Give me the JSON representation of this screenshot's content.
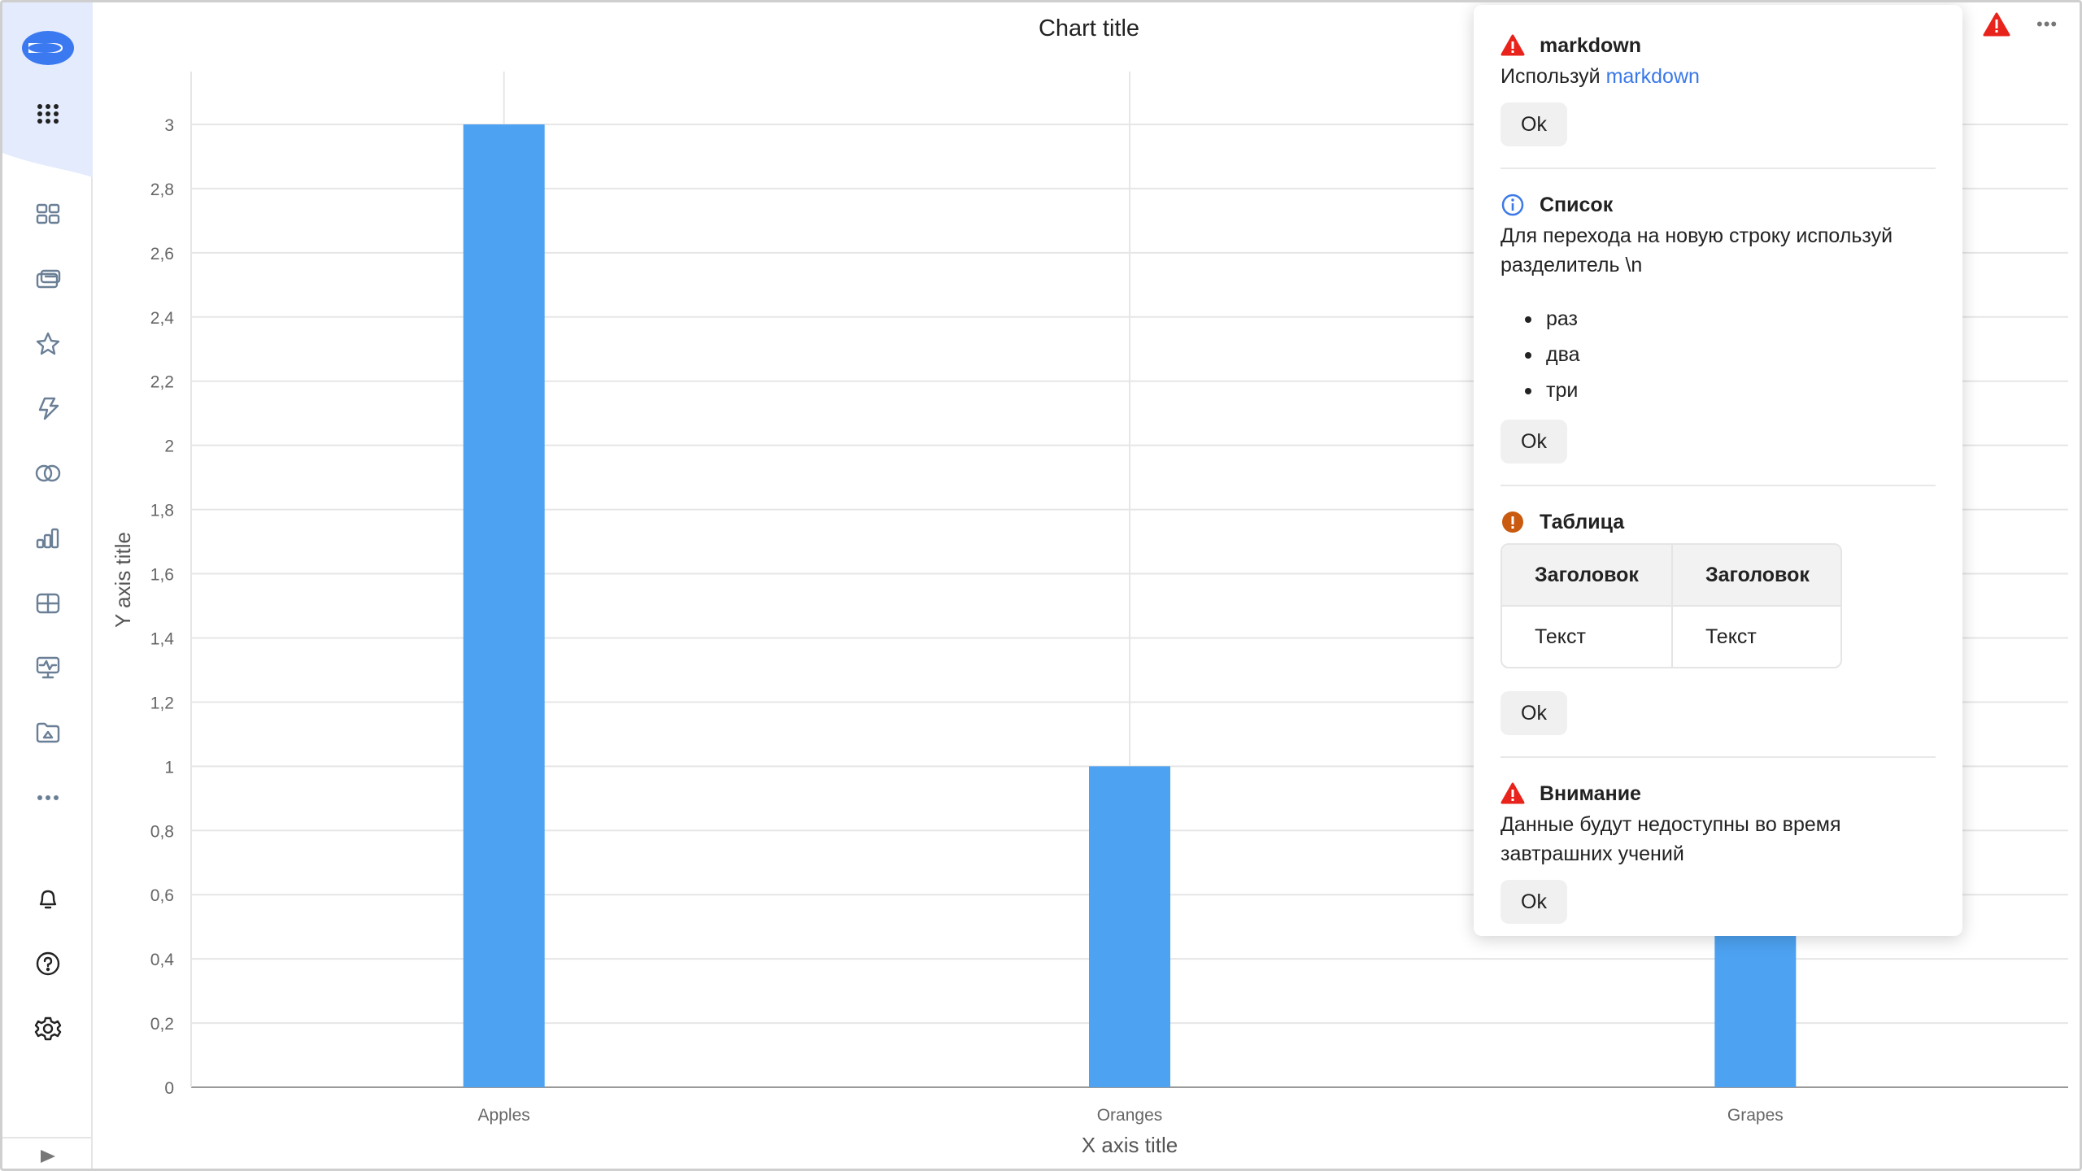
{
  "sidebar": {
    "items": [
      "logo",
      "apps-grid",
      "dashboards",
      "collections",
      "favorites",
      "actions",
      "links",
      "charts",
      "datasets",
      "monitoring",
      "folders",
      "more"
    ],
    "bottom": [
      "notifications",
      "help",
      "settings"
    ]
  },
  "header": {
    "more_label": "•••"
  },
  "chart_data": {
    "type": "bar",
    "title": "Chart title",
    "xlabel": "X axis title",
    "ylabel": "Y axis title",
    "categories": [
      "Apples",
      "Oranges",
      "Grapes"
    ],
    "values": [
      3,
      1,
      2
    ],
    "ylim": [
      0,
      3
    ],
    "yticks": [
      "0",
      "0,2",
      "0,4",
      "0,6",
      "0,8",
      "1",
      "1,2",
      "1,4",
      "1,6",
      "1,8",
      "2",
      "2,2",
      "2,4",
      "2,6",
      "2,8",
      "3"
    ],
    "grid": true,
    "color": "#4da2f1"
  },
  "popup": {
    "sections": [
      {
        "type": "danger",
        "title": "markdown",
        "text": "Используй ",
        "link": "markdown",
        "ok": "Ok"
      },
      {
        "type": "info",
        "title": "Список",
        "text": "Для перехода на новую строку используй разделитель \\n",
        "items": [
          "раз",
          "два",
          "три"
        ],
        "ok": "Ok"
      },
      {
        "type": "warning",
        "title": "Таблица",
        "table": {
          "headers": [
            "Заголовок",
            "Заголовок"
          ],
          "rows": [
            [
              "Текст",
              "Текст"
            ]
          ]
        },
        "ok": "Ok"
      },
      {
        "type": "danger",
        "title": "Внимание",
        "text": "Данные будут недоступны во время завтрашних учений",
        "ok": "Ok"
      }
    ]
  },
  "colors": {
    "danger": "#e8231b",
    "info": "#3b79e8",
    "warning": "#c95a0f",
    "bar": "#4da2f1",
    "sidebar_accent": "#e3ebfd"
  }
}
